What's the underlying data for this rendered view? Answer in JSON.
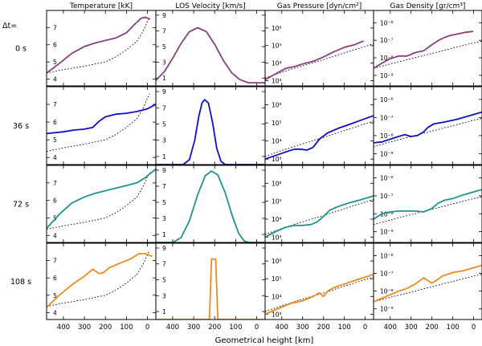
{
  "chart_data": {
    "type": "line",
    "xlabel": "Geometrical height [km]",
    "xlim": [
      480,
      -40
    ],
    "xticks": [
      400,
      300,
      200,
      100,
      0
    ],
    "row_prefix": "Δt=",
    "rows": [
      "0 s",
      "36 s",
      "72 s",
      "108 s"
    ],
    "series_colors": [
      "#8e3d7e",
      "#1010c0",
      "#21938e",
      "#f08a1e"
    ],
    "panels": [
      {
        "title": "Temperature [kK]",
        "scale": "linear",
        "ylim": [
          3.6,
          8.0
        ],
        "ytick_labels": [
          "4",
          "5",
          "6",
          "7"
        ],
        "ytick_values": [
          4,
          5,
          6,
          7
        ],
        "reference": [
          [
            480,
            4.35
          ],
          [
            400,
            4.55
          ],
          [
            300,
            4.75
          ],
          [
            200,
            5.0
          ],
          [
            150,
            5.3
          ],
          [
            100,
            5.7
          ],
          [
            50,
            6.2
          ],
          [
            20,
            6.8
          ],
          [
            0,
            7.35
          ],
          [
            -10,
            7.6
          ]
        ],
        "curves": [
          [
            [
              480,
              4.35
            ],
            [
              420,
              4.9
            ],
            [
              360,
              5.5
            ],
            [
              300,
              5.9
            ],
            [
              250,
              6.1
            ],
            [
              200,
              6.25
            ],
            [
              150,
              6.4
            ],
            [
              100,
              6.7
            ],
            [
              60,
              7.2
            ],
            [
              30,
              7.55
            ],
            [
              10,
              7.6
            ],
            [
              -10,
              7.5
            ]
          ],
          [
            [
              480,
              5.35
            ],
            [
              400,
              5.45
            ],
            [
              350,
              5.55
            ],
            [
              300,
              5.6
            ],
            [
              260,
              5.7
            ],
            [
              230,
              6.05
            ],
            [
              200,
              6.3
            ],
            [
              150,
              6.45
            ],
            [
              100,
              6.5
            ],
            [
              50,
              6.6
            ],
            [
              0,
              6.75
            ],
            [
              -40,
              7.0
            ]
          ],
          [
            [
              480,
              4.4
            ],
            [
              420,
              5.2
            ],
            [
              360,
              5.85
            ],
            [
              300,
              6.2
            ],
            [
              250,
              6.4
            ],
            [
              200,
              6.55
            ],
            [
              150,
              6.7
            ],
            [
              100,
              6.85
            ],
            [
              50,
              7.0
            ],
            [
              10,
              7.3
            ],
            [
              -20,
              7.6
            ],
            [
              -40,
              7.8
            ]
          ],
          [
            [
              480,
              4.3
            ],
            [
              420,
              5.0
            ],
            [
              360,
              5.6
            ],
            [
              300,
              6.1
            ],
            [
              260,
              6.5
            ],
            [
              230,
              6.25
            ],
            [
              210,
              6.3
            ],
            [
              180,
              6.6
            ],
            [
              130,
              6.85
            ],
            [
              80,
              7.1
            ],
            [
              40,
              7.4
            ],
            [
              10,
              7.4
            ],
            [
              -20,
              7.25
            ]
          ]
        ]
      },
      {
        "title": "LOS Velocity [km/s]",
        "scale": "linear",
        "ylim": [
          0,
          9.6
        ],
        "ytick_labels": [
          "1",
          "3",
          "5",
          "7",
          "9"
        ],
        "ytick_values": [
          1,
          3,
          5,
          7,
          9
        ],
        "reference": [],
        "curves": [
          [
            [
              480,
              0.7
            ],
            [
              440,
              1.8
            ],
            [
              400,
              3.5
            ],
            [
              360,
              5.4
            ],
            [
              320,
              6.9
            ],
            [
              280,
              7.4
            ],
            [
              240,
              6.9
            ],
            [
              200,
              5.3
            ],
            [
              160,
              3.3
            ],
            [
              120,
              1.7
            ],
            [
              80,
              0.8
            ],
            [
              40,
              0.4
            ],
            [
              -40,
              0.4
            ]
          ],
          [
            [
              480,
              0.0
            ],
            [
              350,
              0.0
            ],
            [
              320,
              0.6
            ],
            [
              295,
              3.0
            ],
            [
              275,
              6.0
            ],
            [
              260,
              7.6
            ],
            [
              248,
              8.0
            ],
            [
              230,
              7.6
            ],
            [
              210,
              5.2
            ],
            [
              190,
              2.0
            ],
            [
              170,
              0.4
            ],
            [
              150,
              0.0
            ],
            [
              -40,
              0.0
            ]
          ],
          [
            [
              480,
              0.0
            ],
            [
              400,
              0.0
            ],
            [
              360,
              0.6
            ],
            [
              320,
              2.7
            ],
            [
              280,
              6.0
            ],
            [
              245,
              8.3
            ],
            [
              215,
              8.9
            ],
            [
              185,
              8.4
            ],
            [
              150,
              6.2
            ],
            [
              115,
              3.2
            ],
            [
              85,
              1.1
            ],
            [
              60,
              0.2
            ],
            [
              40,
              0.0
            ],
            [
              -40,
              0.0
            ]
          ],
          [
            [
              480,
              0.0
            ],
            [
              240,
              0.0
            ],
            [
              225,
              0.0
            ],
            [
              215,
              7.6
            ],
            [
              195,
              7.6
            ],
            [
              185,
              0.0
            ],
            [
              -40,
              0.0
            ]
          ]
        ]
      },
      {
        "title": "Gas Pressure [dyn/cm²]",
        "scale": "log",
        "ylim": [
          2.7,
          7.0
        ],
        "ytick_labels": [
          "10³",
          "10⁴",
          "10⁵",
          "10⁶"
        ],
        "ytick_values": [
          3,
          4,
          5,
          6
        ],
        "reference": [
          [
            480,
            3.15
          ],
          [
            400,
            3.48
          ],
          [
            300,
            3.85
          ],
          [
            200,
            4.2
          ],
          [
            100,
            4.58
          ],
          [
            0,
            4.95
          ],
          [
            -40,
            5.1
          ]
        ],
        "curves": [
          [
            [
              480,
              3.05
            ],
            [
              420,
              3.45
            ],
            [
              380,
              3.7
            ],
            [
              340,
              3.8
            ],
            [
              300,
              3.95
            ],
            [
              250,
              4.1
            ],
            [
              200,
              4.35
            ],
            [
              150,
              4.65
            ],
            [
              100,
              4.9
            ],
            [
              50,
              5.05
            ],
            [
              10,
              5.25
            ]
          ],
          [
            [
              480,
              3.0
            ],
            [
              430,
              3.2
            ],
            [
              380,
              3.4
            ],
            [
              340,
              3.55
            ],
            [
              310,
              3.55
            ],
            [
              280,
              3.5
            ],
            [
              250,
              3.65
            ],
            [
              220,
              4.1
            ],
            [
              180,
              4.45
            ],
            [
              130,
              4.7
            ],
            [
              80,
              4.9
            ],
            [
              20,
              5.15
            ],
            [
              -40,
              5.4
            ]
          ],
          [
            [
              480,
              3.0
            ],
            [
              430,
              3.3
            ],
            [
              380,
              3.55
            ],
            [
              340,
              3.65
            ],
            [
              300,
              3.65
            ],
            [
              260,
              3.7
            ],
            [
              230,
              3.85
            ],
            [
              200,
              4.15
            ],
            [
              170,
              4.5
            ],
            [
              130,
              4.7
            ],
            [
              80,
              4.9
            ],
            [
              30,
              5.05
            ],
            [
              -40,
              5.3
            ]
          ],
          [
            [
              480,
              3.0
            ],
            [
              440,
              3.2
            ],
            [
              400,
              3.4
            ],
            [
              360,
              3.6
            ],
            [
              300,
              3.75
            ],
            [
              250,
              4.0
            ],
            [
              220,
              4.2
            ],
            [
              200,
              4.0
            ],
            [
              180,
              4.3
            ],
            [
              150,
              4.5
            ],
            [
              100,
              4.7
            ],
            [
              50,
              4.9
            ],
            [
              -40,
              5.25
            ]
          ]
        ]
      },
      {
        "title": "Gas Density [gr/cm³]",
        "scale": "log",
        "ylim": [
          -9.6,
          -5.3
        ],
        "ytick_labels": [
          "10⁻⁹",
          "10⁻⁸",
          "10⁻⁷",
          "10⁻⁶"
        ],
        "ytick_values": [
          -9,
          -8,
          -7,
          -6
        ],
        "reference": [
          [
            480,
            -8.6
          ],
          [
            400,
            -8.35
          ],
          [
            300,
            -8.05
          ],
          [
            200,
            -7.75
          ],
          [
            100,
            -7.45
          ],
          [
            0,
            -7.15
          ],
          [
            -40,
            -7.05
          ]
        ],
        "curves": [
          [
            [
              480,
              -8.6
            ],
            [
              440,
              -8.3
            ],
            [
              400,
              -8.05
            ],
            [
              360,
              -7.9
            ],
            [
              320,
              -7.9
            ],
            [
              280,
              -7.7
            ],
            [
              240,
              -7.6
            ],
            [
              200,
              -7.25
            ],
            [
              160,
              -6.95
            ],
            [
              120,
              -6.75
            ],
            [
              80,
              -6.65
            ],
            [
              40,
              -6.55
            ],
            [
              5,
              -6.5
            ]
          ],
          [
            [
              480,
              -8.4
            ],
            [
              440,
              -8.35
            ],
            [
              400,
              -8.2
            ],
            [
              360,
              -8.05
            ],
            [
              330,
              -7.95
            ],
            [
              300,
              -8.05
            ],
            [
              270,
              -8.0
            ],
            [
              240,
              -7.8
            ],
            [
              220,
              -7.55
            ],
            [
              190,
              -7.35
            ],
            [
              140,
              -7.25
            ],
            [
              80,
              -7.1
            ],
            [
              20,
              -6.9
            ],
            [
              -40,
              -6.7
            ]
          ],
          [
            [
              480,
              -8.3
            ],
            [
              440,
              -8.0
            ],
            [
              400,
              -7.9
            ],
            [
              360,
              -7.85
            ],
            [
              320,
              -7.85
            ],
            [
              280,
              -7.85
            ],
            [
              240,
              -7.9
            ],
            [
              200,
              -7.7
            ],
            [
              170,
              -7.4
            ],
            [
              140,
              -7.25
            ],
            [
              100,
              -7.15
            ],
            [
              50,
              -6.95
            ],
            [
              -40,
              -6.65
            ]
          ],
          [
            [
              480,
              -8.6
            ],
            [
              440,
              -8.4
            ],
            [
              400,
              -8.2
            ],
            [
              360,
              -8.0
            ],
            [
              320,
              -7.85
            ],
            [
              280,
              -7.6
            ],
            [
              240,
              -7.25
            ],
            [
              220,
              -7.4
            ],
            [
              200,
              -7.55
            ],
            [
              180,
              -7.4
            ],
            [
              150,
              -7.15
            ],
            [
              100,
              -6.95
            ],
            [
              50,
              -6.85
            ],
            [
              -40,
              -6.55
            ]
          ]
        ]
      }
    ]
  }
}
